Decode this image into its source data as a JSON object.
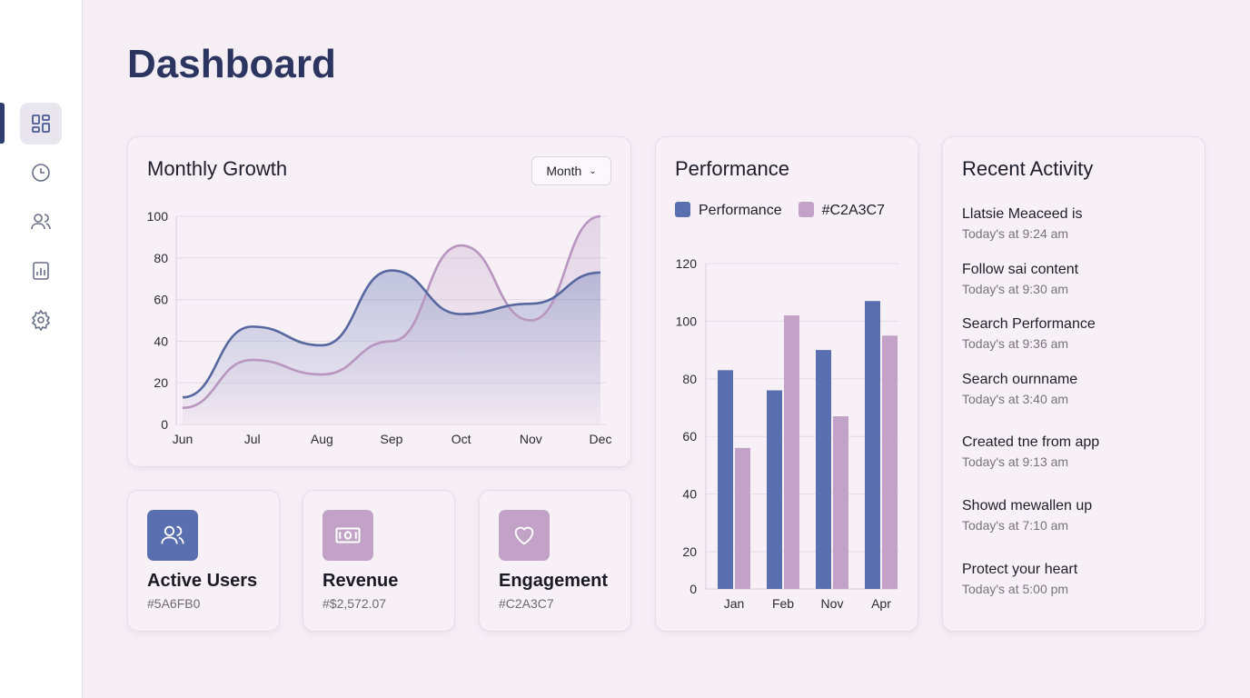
{
  "page": {
    "title": "Dashboard"
  },
  "sidebar": {
    "items": [
      {
        "icon": "dashboard-icon",
        "active": true
      },
      {
        "icon": "clock-icon"
      },
      {
        "icon": "users-icon"
      },
      {
        "icon": "report-icon"
      },
      {
        "icon": "gear-icon"
      }
    ]
  },
  "growth": {
    "title": "Monthly Growth",
    "dropdown": "Month"
  },
  "performance": {
    "title": "Performance",
    "legend": [
      "Performance",
      "#C2A3C7"
    ]
  },
  "stats": [
    {
      "label": "Active Users",
      "value": "#5A6FB0",
      "icon": "users-icon",
      "color": "#5a6fb0"
    },
    {
      "label": "Revenue",
      "value": "#$2,572.07",
      "icon": "money-icon",
      "color": "#c2a3c7"
    },
    {
      "label": "Engagement",
      "value": "#C2A3C7",
      "icon": "heart-icon",
      "color": "#c2a3c7"
    }
  ],
  "activity": {
    "title": "Recent Activity",
    "items": [
      {
        "text": "Llatsie Meaceed is",
        "time": "Today's at 9:24 am"
      },
      {
        "text": "Follow sai content",
        "time": "Today's at 9:30 am"
      },
      {
        "text": "Search Performance",
        "time": "Today's at 9:36 am"
      },
      {
        "text": "Search ournname",
        "time": "Today's at 3:40 am"
      },
      {
        "text": "Created tne from app",
        "time": "Today's at 9:13 am"
      },
      {
        "text": "Showd mewallen up",
        "time": "Today's at 7:10 am"
      },
      {
        "text": "Protect your heart",
        "time": "Today's at 5:00 pm"
      }
    ]
  },
  "colors": {
    "primary": "#5a6fb0",
    "secondary": "#c2a3c7"
  },
  "chart_data": [
    {
      "type": "area",
      "categories": [
        "Jun",
        "Jul",
        "Aug",
        "Sep",
        "Oct",
        "Nov",
        "Dec"
      ],
      "ylim": [
        0,
        100
      ],
      "yticks": [
        0,
        20,
        40,
        60,
        80,
        100
      ],
      "grid": true,
      "series": [
        {
          "values": [
            13,
            47,
            38,
            74,
            53,
            58,
            73
          ],
          "color": "#5a6fb0"
        },
        {
          "values": [
            8,
            31,
            24,
            40,
            86,
            50,
            100
          ],
          "color": "#c2a3c7"
        }
      ]
    },
    {
      "type": "bar",
      "categories": [
        "Jan",
        "Feb",
        "Nov",
        "Apr"
      ],
      "yticks": [
        0,
        20,
        40,
        60,
        80,
        100,
        120
      ],
      "ylim": [
        0,
        120
      ],
      "grid": true,
      "legend": "top-left",
      "series": [
        {
          "name": "Performance",
          "values": [
            83,
            76,
            90,
            107
          ],
          "color": "#5a6fb0"
        },
        {
          "name": "#C2A3C7",
          "values": [
            56,
            102,
            67,
            95
          ],
          "color": "#c2a3c7"
        }
      ]
    }
  ]
}
